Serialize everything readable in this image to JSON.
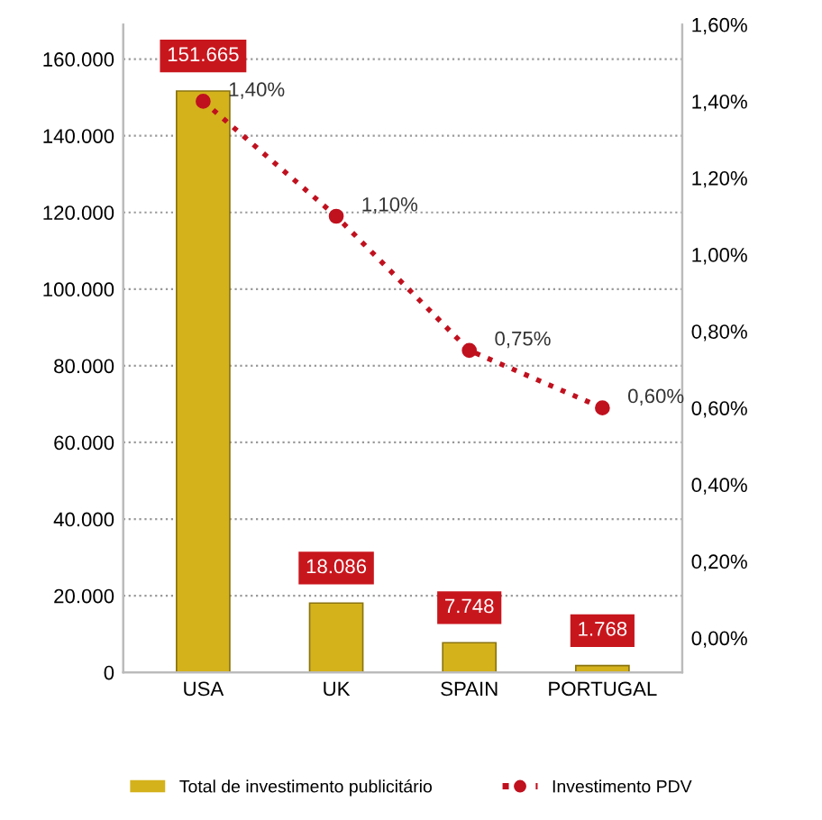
{
  "chart_data": {
    "type": "bar",
    "categories": [
      "USA",
      "UK",
      "SPAIN",
      "PORTUGAL"
    ],
    "series": [
      {
        "name": "Total de investimento publicitário",
        "color": "#d4b21c",
        "values": [
          151665,
          18086,
          7748,
          1768
        ],
        "value_labels": [
          "151.665",
          "18.086",
          "7.748",
          "1.768"
        ]
      },
      {
        "name": "Investimento PDV",
        "type": "line",
        "axis": "y2",
        "color": "#c0111f",
        "values": [
          1.4,
          1.1,
          0.75,
          0.6
        ],
        "value_labels": [
          "1,40%",
          "1,10%",
          "0,75%",
          "0,60%"
        ],
        "marker": "circle",
        "line_style": "dotted"
      }
    ],
    "ylim": [
      0,
      169000
    ],
    "yticks": [
      0,
      {
        "value": 20000,
        "label": "20.000"
      },
      {
        "value": 40000,
        "label": "40.000"
      },
      {
        "value": 60000,
        "label": "60.000"
      },
      {
        "value": 80000,
        "label": "80.000"
      },
      {
        "value": 100000,
        "label": "100.000"
      },
      {
        "value": 120000,
        "label": "120.000"
      },
      {
        "value": 140000,
        "label": "140.000"
      },
      {
        "value": 160000,
        "label": "160.000"
      }
    ],
    "y2lim": [
      -0.09,
      1.6
    ],
    "y2ticks": [
      {
        "value": 0,
        "label": "0,00%"
      },
      {
        "value": 0.2,
        "label": "0,20%"
      },
      {
        "value": 0.4,
        "label": "0,40%"
      },
      {
        "value": 0.6,
        "label": "0,60%"
      },
      {
        "value": 0.8,
        "label": "0,80%"
      },
      {
        "value": 1.0,
        "label": "1,00%"
      },
      {
        "value": 1.2,
        "label": "1,20%"
      },
      {
        "value": 1.4,
        "label": "1,40%"
      },
      {
        "value": 1.6,
        "label": "1,60%"
      }
    ],
    "grid": "y",
    "legend": "bottom"
  }
}
